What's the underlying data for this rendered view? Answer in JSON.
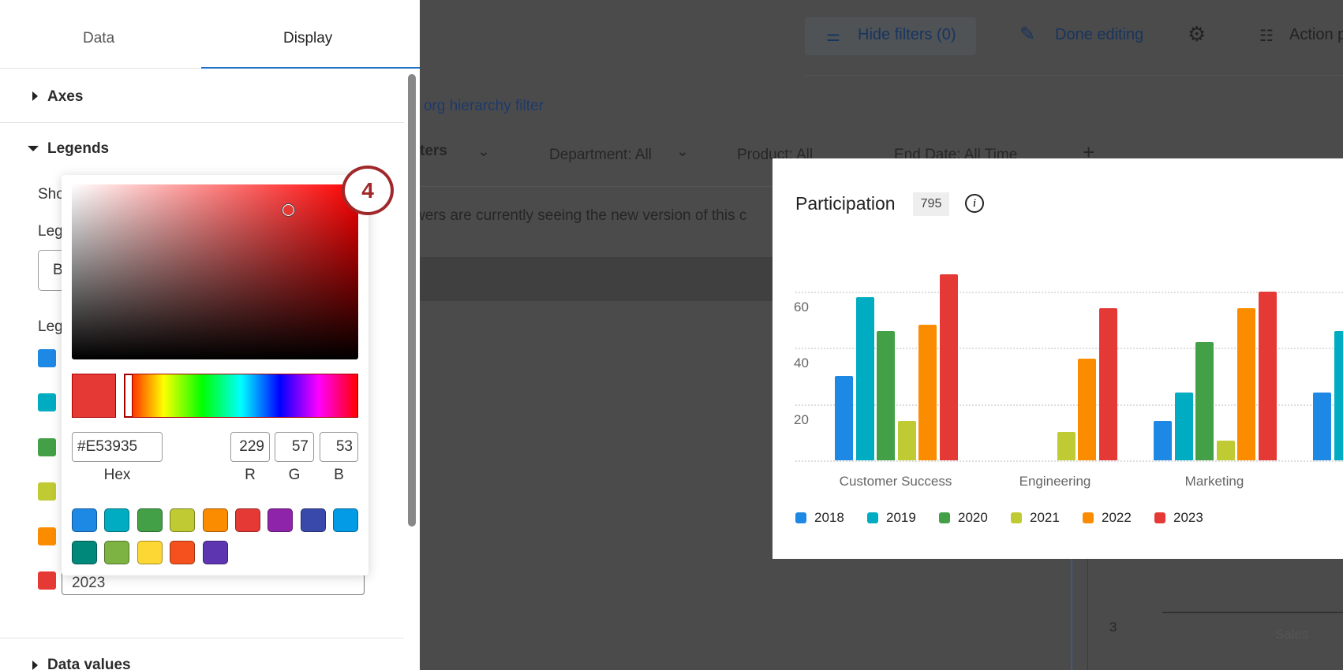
{
  "toolbar": {
    "hide_filters": "Hide filters (0)",
    "done_editing": "Done editing",
    "action": "Action p"
  },
  "background": {
    "org_filter_link": "n org hierarchy filter",
    "filters": [
      {
        "label": "ters"
      },
      {
        "label": "Department: All"
      },
      {
        "label": "Product: All"
      },
      {
        "label": "End Date: All Time"
      }
    ],
    "notice": "wers are currently seeing the new version of this c",
    "axis_value": "3",
    "axis_label": "Sales"
  },
  "panel": {
    "tabs": [
      {
        "label": "Data"
      },
      {
        "label": "Display"
      }
    ],
    "active_tab": "Display",
    "sections": {
      "axes": "Axes",
      "legends": "Legends",
      "data_values": "Data values"
    },
    "legend_fields": {
      "show_label": "Sho",
      "position_label": "Leg",
      "position_value": "B",
      "labels_label": "Leg",
      "last_label_value": "2023"
    },
    "legend_colors": [
      "#1E88E5",
      "#00ACC1",
      "#43A047",
      "#C0CA33",
      "#FB8C00",
      "#E53935"
    ]
  },
  "step_badge": "4",
  "color_picker": {
    "hex": "#E53935",
    "r": "229",
    "g": "57",
    "b": "53",
    "hex_label": "Hex",
    "r_label": "R",
    "g_label": "G",
    "b_label": "B",
    "presets": [
      "#1E88E5",
      "#00ACC1",
      "#43A047",
      "#C0CA33",
      "#FB8C00",
      "#E53935",
      "#8E24AA",
      "#3949AB",
      "#039BE5",
      "#00897B",
      "#7CB342",
      "#FDD835",
      "#F4511E",
      "#5E35B1"
    ]
  },
  "card": {
    "title": "Participation",
    "count": "795"
  },
  "chart_data": {
    "type": "bar",
    "title": "Participation",
    "yticks": [
      "20",
      "40",
      "60"
    ],
    "ylim": [
      0,
      60
    ],
    "grid": true,
    "legend": "bottom-left",
    "categories": [
      "Customer Success",
      "Engineering",
      "Marketing",
      ""
    ],
    "series": [
      {
        "name": "2018",
        "color": "#1E88E5",
        "values": [
          30,
          null,
          14,
          24
        ]
      },
      {
        "name": "2019",
        "color": "#00ACC1",
        "values": [
          58,
          null,
          24,
          46
        ]
      },
      {
        "name": "2020",
        "color": "#43A047",
        "values": [
          46,
          null,
          42,
          null
        ]
      },
      {
        "name": "2021",
        "color": "#C0CA33",
        "values": [
          14,
          10,
          7,
          null
        ]
      },
      {
        "name": "2022",
        "color": "#FB8C00",
        "values": [
          48,
          36,
          54,
          null
        ]
      },
      {
        "name": "2023",
        "color": "#E53935",
        "values": [
          66,
          54,
          60,
          null
        ]
      }
    ]
  }
}
